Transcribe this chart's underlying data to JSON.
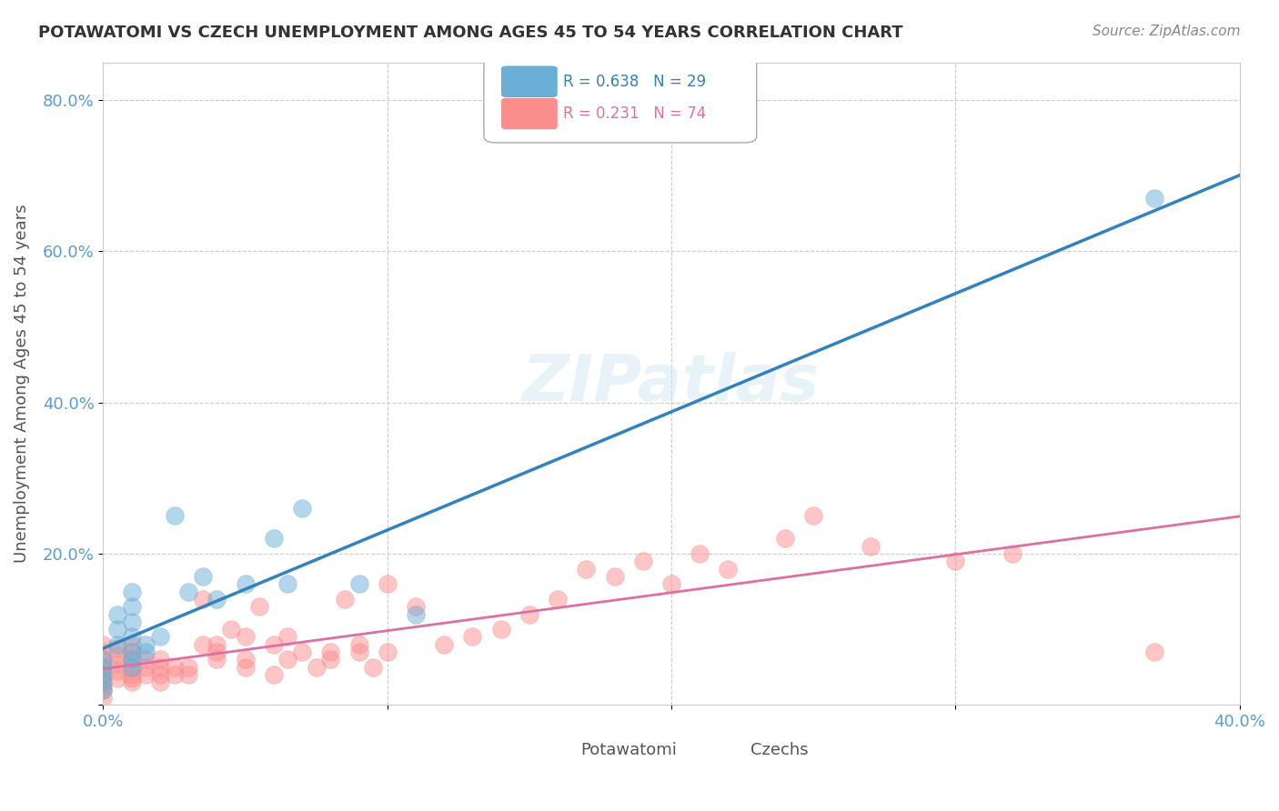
{
  "title": "POTAWATOMI VS CZECH UNEMPLOYMENT AMONG AGES 45 TO 54 YEARS CORRELATION CHART",
  "source": "Source: ZipAtlas.com",
  "ylabel": "Unemployment Among Ages 45 to 54 years",
  "xlabel": "",
  "xlim": [
    0.0,
    0.4
  ],
  "ylim": [
    0.0,
    0.85
  ],
  "yticks": [
    0.0,
    0.2,
    0.4,
    0.6,
    0.8
  ],
  "ytick_labels": [
    "",
    "20.0%",
    "40.0%",
    "60.0%",
    "80.0%"
  ],
  "xticks": [
    0.0,
    0.1,
    0.2,
    0.3,
    0.4
  ],
  "xtick_labels": [
    "0.0%",
    "",
    "",
    "",
    "40.0%"
  ],
  "potawatomi_color": "#6baed6",
  "czech_color": "#fc8d8d",
  "regression_potawatomi_color": "#3182bd",
  "regression_czech_color": "#de6fa1",
  "R_potawatomi": 0.638,
  "N_potawatomi": 29,
  "R_czech": 0.231,
  "N_czech": 74,
  "legend_label_1": "Potawatomi",
  "legend_label_2": "Czechs",
  "watermark": "ZIPatlas",
  "background_color": "#ffffff",
  "potawatomi_x": [
    0.0,
    0.0,
    0.0,
    0.0,
    0.0,
    0.005,
    0.005,
    0.005,
    0.01,
    0.01,
    0.01,
    0.01,
    0.01,
    0.01,
    0.01,
    0.015,
    0.015,
    0.02,
    0.025,
    0.03,
    0.035,
    0.04,
    0.05,
    0.06,
    0.065,
    0.07,
    0.09,
    0.11,
    0.37
  ],
  "potawatomi_y": [
    0.05,
    0.04,
    0.06,
    0.03,
    0.02,
    0.08,
    0.12,
    0.1,
    0.05,
    0.07,
    0.09,
    0.06,
    0.11,
    0.13,
    0.15,
    0.08,
    0.07,
    0.09,
    0.25,
    0.15,
    0.17,
    0.14,
    0.16,
    0.22,
    0.16,
    0.26,
    0.16,
    0.12,
    0.67
  ],
  "czech_x": [
    0.0,
    0.0,
    0.0,
    0.0,
    0.0,
    0.0,
    0.0,
    0.0,
    0.0,
    0.005,
    0.005,
    0.005,
    0.005,
    0.005,
    0.01,
    0.01,
    0.01,
    0.01,
    0.01,
    0.01,
    0.01,
    0.015,
    0.015,
    0.015,
    0.02,
    0.02,
    0.02,
    0.02,
    0.025,
    0.025,
    0.03,
    0.03,
    0.035,
    0.035,
    0.04,
    0.04,
    0.04,
    0.045,
    0.05,
    0.05,
    0.05,
    0.055,
    0.06,
    0.06,
    0.065,
    0.065,
    0.07,
    0.075,
    0.08,
    0.08,
    0.085,
    0.09,
    0.09,
    0.095,
    0.1,
    0.1,
    0.11,
    0.12,
    0.13,
    0.14,
    0.15,
    0.16,
    0.17,
    0.18,
    0.19,
    0.2,
    0.21,
    0.22,
    0.24,
    0.25,
    0.27,
    0.3,
    0.32,
    0.37
  ],
  "czech_y": [
    0.03,
    0.04,
    0.05,
    0.02,
    0.01,
    0.06,
    0.07,
    0.08,
    0.025,
    0.035,
    0.045,
    0.055,
    0.065,
    0.075,
    0.03,
    0.04,
    0.05,
    0.06,
    0.07,
    0.08,
    0.035,
    0.04,
    0.05,
    0.06,
    0.03,
    0.04,
    0.05,
    0.06,
    0.04,
    0.05,
    0.04,
    0.05,
    0.08,
    0.14,
    0.06,
    0.07,
    0.08,
    0.1,
    0.05,
    0.06,
    0.09,
    0.13,
    0.04,
    0.08,
    0.06,
    0.09,
    0.07,
    0.05,
    0.06,
    0.07,
    0.14,
    0.07,
    0.08,
    0.05,
    0.07,
    0.16,
    0.13,
    0.08,
    0.09,
    0.1,
    0.12,
    0.14,
    0.18,
    0.17,
    0.19,
    0.16,
    0.2,
    0.18,
    0.22,
    0.25,
    0.21,
    0.19,
    0.2,
    0.07
  ]
}
